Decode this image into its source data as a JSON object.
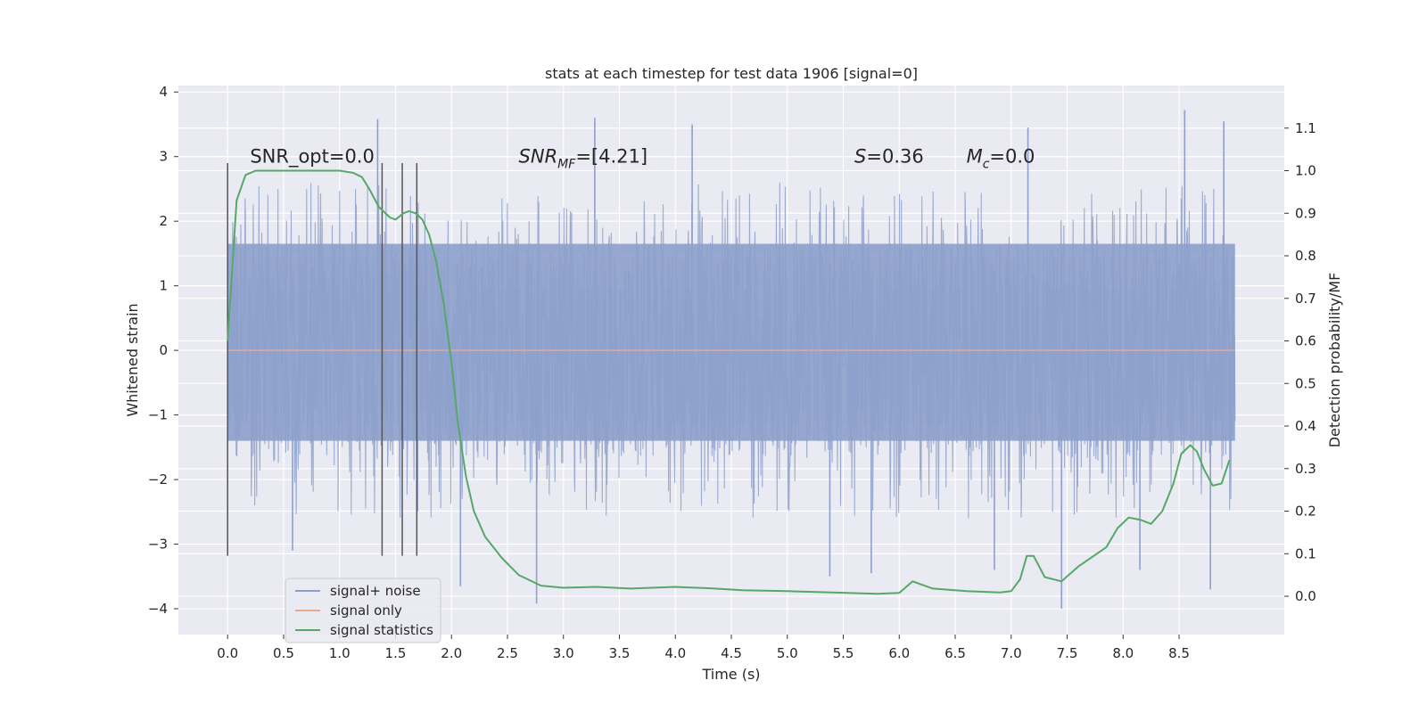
{
  "chart_data": {
    "type": "line",
    "title": "stats at each timestep for test data 1906 [signal=0]",
    "xlabel": "Time (s)",
    "ylabel": "Whitened strain",
    "y2label": "Detection probability/MF",
    "xlim": [
      -0.44,
      9.44
    ],
    "ylim": [
      -4.4,
      4.1
    ],
    "y2lim": [
      -0.09,
      1.2
    ],
    "grid": true,
    "xticks": [
      0.0,
      0.5,
      1.0,
      1.5,
      2.0,
      2.5,
      3.0,
      3.5,
      4.0,
      4.5,
      5.0,
      5.5,
      6.0,
      6.5,
      7.0,
      7.5,
      8.0,
      8.5
    ],
    "xtick_labels": [
      "0.0",
      "0.5",
      "1.0",
      "1.5",
      "2.0",
      "2.5",
      "3.0",
      "3.5",
      "4.0",
      "4.5",
      "5.0",
      "5.5",
      "6.0",
      "6.5",
      "7.0",
      "7.5",
      "8.0",
      "8.5"
    ],
    "yticks": [
      -4,
      -3,
      -2,
      -1,
      0,
      1,
      2,
      3,
      4
    ],
    "ytick_labels": [
      "−4",
      "−3",
      "−2",
      "−1",
      "0",
      "1",
      "2",
      "3",
      "4"
    ],
    "y2ticks": [
      0.0,
      0.1,
      0.2,
      0.3,
      0.4,
      0.5,
      0.6,
      0.7,
      0.8,
      0.9,
      1.0,
      1.1
    ],
    "y2tick_labels": [
      "0.0",
      "0.1",
      "0.2",
      "0.3",
      "0.4",
      "0.5",
      "0.6",
      "0.7",
      "0.8",
      "0.9",
      "1.0",
      "1.1"
    ],
    "annotations": [
      {
        "id": "snr-opt",
        "html": "SNR_opt=0.0",
        "x": 0.2,
        "y": 3.0
      },
      {
        "id": "snr-mf",
        "html": "<tspan font-style=\"italic\">SNR</tspan><tspan font-style=\"italic\" dy=\"6\" font-size=\"14\">MF</tspan><tspan dy=\"-6\">=[4.21]</tspan>",
        "x": 2.6,
        "y": 3.0
      },
      {
        "id": "s-value",
        "html": "<tspan font-style=\"italic\">S</tspan>=0.36",
        "x": 5.6,
        "y": 3.0
      },
      {
        "id": "mc-value",
        "html": "<tspan font-style=\"italic\">M</tspan><tspan font-style=\"italic\" dy=\"6\" font-size=\"14\">c</tspan><tspan dy=\"-6\">=0.0</tspan>",
        "x": 6.6,
        "y": 3.0
      }
    ],
    "vlines": [
      {
        "x": 0.0,
        "ymin": -3.18,
        "ymax": 2.9
      },
      {
        "x": 1.38,
        "ymin": -3.18,
        "ymax": 2.9
      },
      {
        "x": 1.56,
        "ymin": -3.18,
        "ymax": 2.9
      },
      {
        "x": 1.69,
        "ymin": -3.18,
        "ymax": 2.9
      }
    ],
    "series": [
      {
        "name": "signal+ noise",
        "color": "#8da0cb",
        "kind": "noise",
        "x_range": [
          0.0,
          9.0
        ],
        "core_range": [
          -1.4,
          1.65
        ],
        "envelope_range": [
          -2.4,
          2.6
        ],
        "peaks": [
          {
            "x": 1.34,
            "y": 3.58
          },
          {
            "x": 2.76,
            "y": -3.92
          },
          {
            "x": 2.08,
            "y": -3.65
          },
          {
            "x": 3.28,
            "y": 3.6
          },
          {
            "x": 7.45,
            "y": -4.0
          },
          {
            "x": 8.55,
            "y": 3.72
          },
          {
            "x": 8.9,
            "y": 3.55
          },
          {
            "x": 8.78,
            "y": -3.7
          },
          {
            "x": 5.38,
            "y": -3.5
          },
          {
            "x": 5.75,
            "y": -3.45
          },
          {
            "x": 7.15,
            "y": 3.45
          },
          {
            "x": 0.58,
            "y": -3.1
          },
          {
            "x": 4.15,
            "y": 3.5
          },
          {
            "x": 6.85,
            "y": -3.4
          },
          {
            "x": 8.15,
            "y": -3.4
          }
        ]
      },
      {
        "name": "signal only",
        "color": "#e9a88b",
        "x": [
          0.0,
          9.0
        ],
        "values": [
          0.0,
          0.0
        ]
      },
      {
        "name": "signal statistics",
        "color": "#55a868",
        "axis": "right",
        "x": [
          0.0,
          0.08,
          0.16,
          0.25,
          0.4,
          0.6,
          0.8,
          1.0,
          1.12,
          1.2,
          1.27,
          1.35,
          1.45,
          1.5,
          1.57,
          1.62,
          1.68,
          1.74,
          1.8,
          1.86,
          1.93,
          2.0,
          2.06,
          2.13,
          2.2,
          2.3,
          2.45,
          2.6,
          2.8,
          3.0,
          3.3,
          3.6,
          4.0,
          4.3,
          4.6,
          5.0,
          5.4,
          5.8,
          6.0,
          6.12,
          6.3,
          6.6,
          6.9,
          7.0,
          7.08,
          7.14,
          7.2,
          7.3,
          7.45,
          7.6,
          7.85,
          7.95,
          8.05,
          8.15,
          8.25,
          8.35,
          8.45,
          8.52,
          8.6,
          8.66,
          8.72,
          8.8,
          8.88,
          8.95
        ],
        "values": [
          0.6,
          0.93,
          0.99,
          1.0,
          1.0,
          1.0,
          1.0,
          1.0,
          0.995,
          0.985,
          0.955,
          0.915,
          0.89,
          0.885,
          0.9,
          0.905,
          0.9,
          0.885,
          0.85,
          0.79,
          0.69,
          0.55,
          0.4,
          0.28,
          0.2,
          0.14,
          0.09,
          0.05,
          0.025,
          0.02,
          0.022,
          0.018,
          0.022,
          0.019,
          0.014,
          0.012,
          0.009,
          0.006,
          0.008,
          0.035,
          0.018,
          0.012,
          0.009,
          0.012,
          0.04,
          0.095,
          0.095,
          0.045,
          0.035,
          0.07,
          0.115,
          0.16,
          0.185,
          0.18,
          0.17,
          0.2,
          0.265,
          0.335,
          0.355,
          0.34,
          0.3,
          0.26,
          0.265,
          0.32
        ]
      }
    ],
    "legend": {
      "position": "lower-left"
    }
  }
}
